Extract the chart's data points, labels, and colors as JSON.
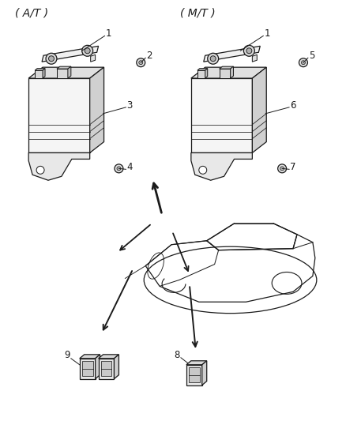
{
  "background_color": "#ffffff",
  "line_color": "#1a1a1a",
  "text_color": "#1a1a1a",
  "figsize": [
    4.38,
    5.33
  ],
  "dpi": 100,
  "label_AT": "( A/T )",
  "label_MT": "( M/T )",
  "lw": 0.9
}
